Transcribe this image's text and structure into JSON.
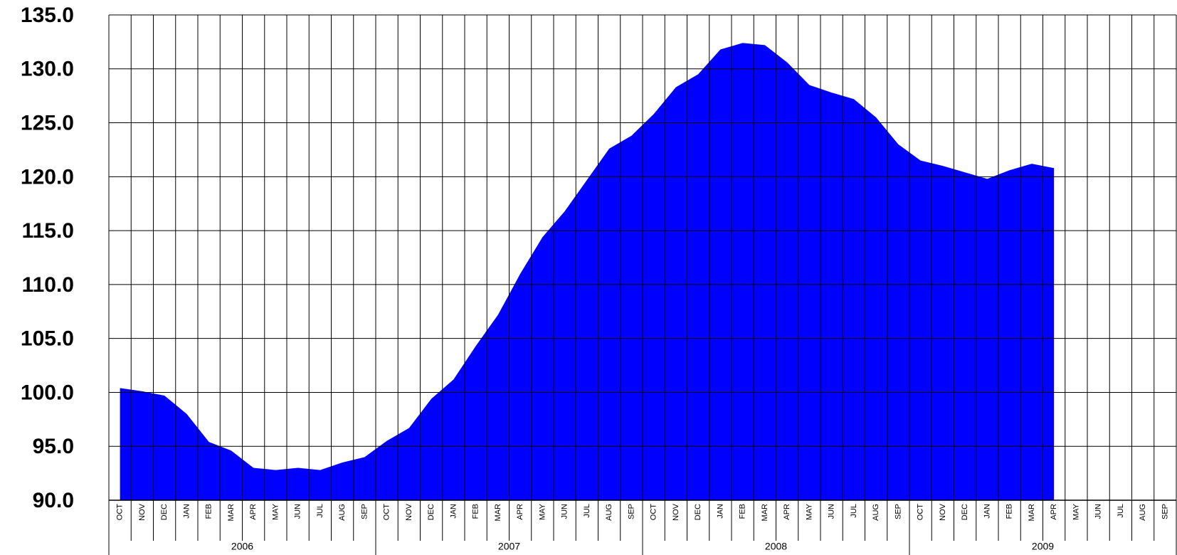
{
  "chart_data": {
    "type": "area",
    "color": "#0000ff",
    "grid": true,
    "categories": [
      "OCT",
      "NOV",
      "DEC",
      "JAN",
      "FEB",
      "MAR",
      "APR",
      "MAY",
      "JUN",
      "JUL",
      "AUG",
      "SEP",
      "OCT",
      "NOV",
      "DEC",
      "JAN",
      "FEB",
      "MAR",
      "APR",
      "MAY",
      "JUN",
      "JUL",
      "AUG",
      "SEP",
      "OCT",
      "NOV",
      "DEC",
      "JAN",
      "FEB",
      "MAR",
      "APR",
      "MAY",
      "JUN",
      "JUL",
      "AUG",
      "SEP",
      "OCT",
      "NOV",
      "DEC",
      "JAN",
      "FEB",
      "MAR",
      "APR",
      "MAY",
      "JUN",
      "JUL",
      "AUG",
      "SEP"
    ],
    "years": [
      "2006",
      "2007",
      "2008",
      "2009"
    ],
    "values": [
      100.4,
      100.1,
      99.7,
      98.0,
      95.4,
      94.6,
      93.0,
      92.8,
      93.0,
      92.8,
      93.5,
      94.0,
      95.5,
      96.7,
      99.4,
      101.2,
      104.3,
      107.2,
      111.0,
      114.4,
      116.8,
      119.7,
      122.6,
      123.8,
      125.8,
      128.3,
      129.5,
      131.8,
      132.4,
      132.2,
      130.6,
      128.5,
      127.8,
      127.2,
      125.5,
      123.0,
      121.5,
      121.0,
      120.4,
      119.8,
      120.6,
      121.2,
      120.8,
      null,
      null,
      null,
      null,
      null
    ],
    "ylim": [
      90,
      135
    ],
    "yticks": [
      {
        "value": 90,
        "label": "90.0"
      },
      {
        "value": 95,
        "label": "95.0"
      },
      {
        "value": 100,
        "label": "100.0"
      },
      {
        "value": 105,
        "label": "105.0"
      },
      {
        "value": 110,
        "label": "110.0"
      },
      {
        "value": 115,
        "label": "115.0"
      },
      {
        "value": 120,
        "label": "120.0"
      },
      {
        "value": 125,
        "label": "125.0"
      },
      {
        "value": 130,
        "label": "130.0"
      },
      {
        "value": 135,
        "label": "135.0"
      }
    ]
  }
}
